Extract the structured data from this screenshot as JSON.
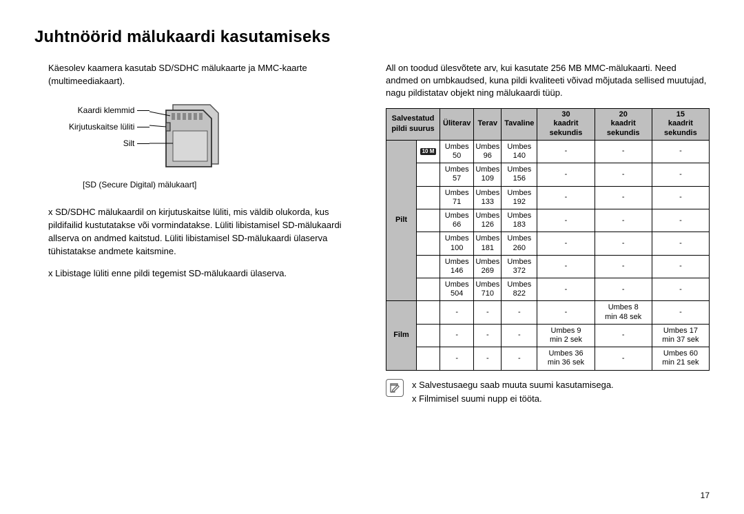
{
  "title": "Juhtnöörid mälukaardi kasutamiseks",
  "left": {
    "intro": "Käesolev kaamera kasutab SD/SDHC mälukaarte ja MMC-kaarte (multimeediakaart).",
    "labels": {
      "terminals": "Kaardi klemmid",
      "wp_switch": "Kirjutuskaitse lüliti",
      "label": "Silt"
    },
    "caption": "[SD (Secure Digital) mälukaart]",
    "bullets": [
      "SD/SDHC mälukaardil on kirjutuskaitse lüliti, mis väldib olukorda, kus pildifailid kustutatakse või vormindatakse. Lüliti libistamisel SD-mälukaardi allserva on andmed kaitstud. Lüliti libistamisel SD-mälukaardi ülaserva tühistatakse andmete kaitsmine.",
      "Libistage lüliti enne pildi tegemist SD-mälukaardi ülaserva."
    ]
  },
  "right": {
    "intro": "All on toodud ülesvõtete arv, kui kasutate 256 MB MMC-mälukaarti. Need andmed on umbkaudsed, kuna pildi kvaliteeti võivad mõjutada sellised muutujad, nagu pildistatav objekt ning mälukaardi tüüp.",
    "headers": {
      "size": "Salvestatud pildi suurus",
      "superfine": "Üliterav",
      "fine": "Terav",
      "normal": "Tavaline",
      "fps30": "30\nkaadrit sekundis",
      "fps20": "20\nkaadrit sekundis",
      "fps15": "15\nkaadrit sekundis"
    },
    "row_labels": {
      "image": "Pilt",
      "movie": "Film"
    },
    "icon_label": "10 M",
    "img_rows": [
      {
        "sf": "Umbes\n50",
        "f": "Umbes\n96",
        "n": "Umbes\n140",
        "a": "-",
        "b": "-",
        "c": "-"
      },
      {
        "sf": "Umbes\n57",
        "f": "Umbes\n109",
        "n": "Umbes\n156",
        "a": "-",
        "b": "-",
        "c": "-"
      },
      {
        "sf": "Umbes\n71",
        "f": "Umbes\n133",
        "n": "Umbes\n192",
        "a": "-",
        "b": "-",
        "c": "-"
      },
      {
        "sf": "Umbes\n66",
        "f": "Umbes\n126",
        "n": "Umbes\n183",
        "a": "-",
        "b": "-",
        "c": "-"
      },
      {
        "sf": "Umbes\n100",
        "f": "Umbes\n181",
        "n": "Umbes\n260",
        "a": "-",
        "b": "-",
        "c": "-"
      },
      {
        "sf": "Umbes\n146",
        "f": "Umbes\n269",
        "n": "Umbes\n372",
        "a": "-",
        "b": "-",
        "c": "-"
      },
      {
        "sf": "Umbes\n504",
        "f": "Umbes\n710",
        "n": "Umbes\n822",
        "a": "-",
        "b": "-",
        "c": "-"
      }
    ],
    "mov_rows": [
      {
        "sf": "-",
        "f": "-",
        "n": "-",
        "a": "-",
        "b": "Umbes 8\nmin 48 sek",
        "c": "-"
      },
      {
        "sf": "-",
        "f": "-",
        "n": "-",
        "a": "Umbes 9\nmin 2 sek",
        "b": "-",
        "c": "Umbes 17\nmin 37 sek"
      },
      {
        "sf": "-",
        "f": "-",
        "n": "-",
        "a": "Umbes 36\nmin 36 sek",
        "b": "-",
        "c": "Umbes 60\nmin 21 sek"
      }
    ],
    "notes": [
      "Salvestusaegu saab muuta suumi kasutamisega.",
      "Filmimisel suumi nupp ei tööta."
    ]
  },
  "page_number": "17",
  "bullet_prefix": "x "
}
